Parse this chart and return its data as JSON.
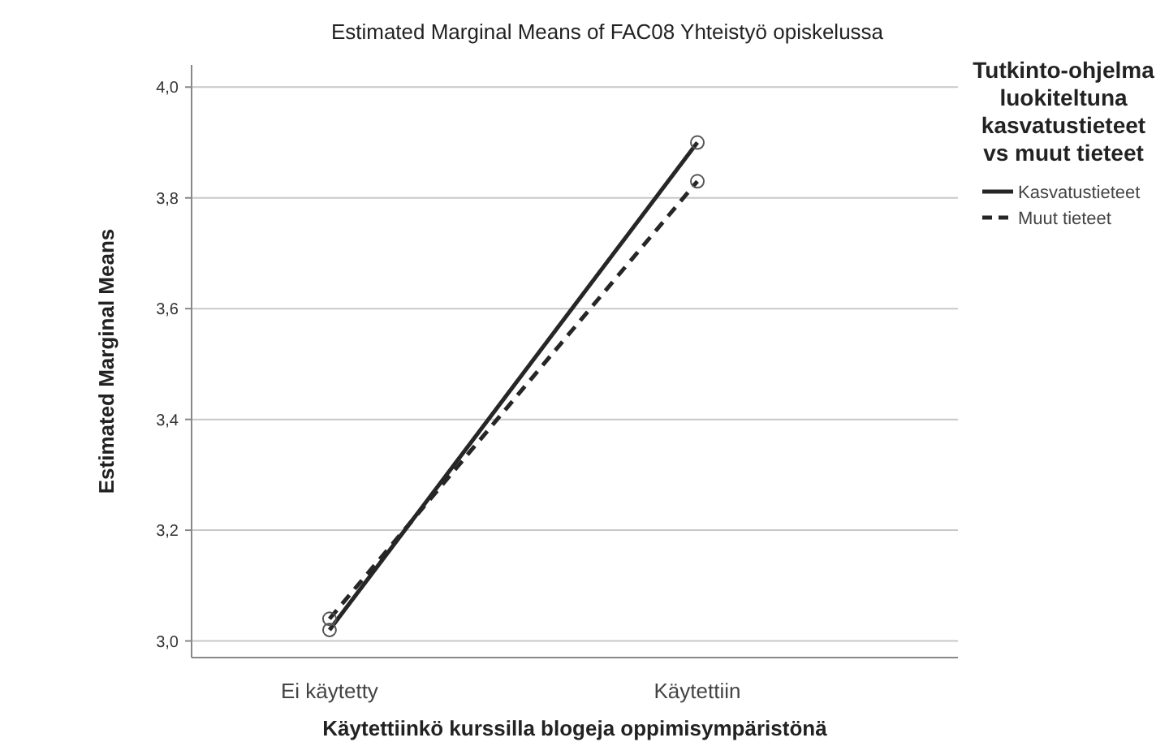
{
  "chart_data": {
    "type": "line",
    "title": "Estimated Marginal Means of FAC08 Yhteistyö opiskelussa",
    "xlabel": "Käytettiinkö kurssilla blogeja oppimisympäristönä",
    "ylabel": "Estimated Marginal Means",
    "legend_title": "Tutkinto-ohjelma luokiteltuna kasvatustieteet vs muut tieteet",
    "categories": [
      "Ei käytetty",
      "Käytettiin"
    ],
    "series": [
      {
        "name": "Kasvatustieteet",
        "color": "#262626",
        "values": [
          3.02,
          3.9
        ],
        "line_style": "solid"
      },
      {
        "name": "Muut tieteet",
        "color": "#262626",
        "values": [
          3.04,
          3.83
        ],
        "line_style": "dashed"
      }
    ],
    "ylim": [
      2.97,
      4.04
    ],
    "yticks": [
      {
        "value": 3,
        "label": "3,0"
      },
      {
        "value": 3.2,
        "label": "3,2"
      },
      {
        "value": 3.4,
        "label": "3,4"
      },
      {
        "value": 3.6,
        "label": "3,6"
      },
      {
        "value": 3.8,
        "label": "3,8"
      },
      {
        "value": 4,
        "label": "4,0"
      }
    ],
    "grid": "y",
    "legend": "top right",
    "marker": "circle"
  }
}
